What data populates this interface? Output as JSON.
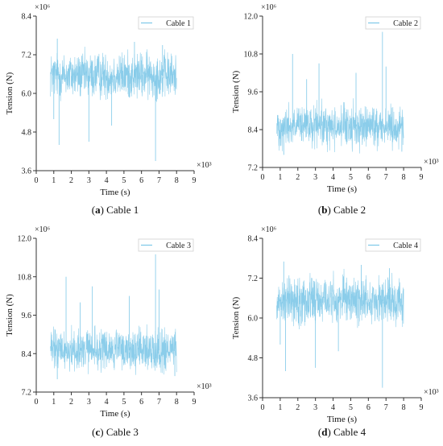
{
  "colors": {
    "signal": "#7ec8e8",
    "axis": "#333333",
    "legend_border": "#cfcfcf"
  },
  "chart_data": [
    {
      "type": "line",
      "caption_letter": "a",
      "caption_text": "Cable 1",
      "legend": "Cable 1",
      "xlabel": "Time (s)",
      "ylabel": "Tension (N)",
      "x_multiplier": "×10³",
      "y_multiplier": "×10⁶",
      "xlim": [
        0,
        9
      ],
      "ylim": [
        3.6,
        8.4
      ],
      "xticks": [
        0,
        1,
        2,
        3,
        4,
        5,
        6,
        7,
        8,
        9
      ],
      "yticks": [
        3.6,
        4.8,
        6.0,
        7.2,
        8.4
      ],
      "yticklabels": [
        "3.6",
        "4.8",
        "6.0",
        "7.2",
        "8.4"
      ],
      "x_range": [
        0.8,
        8.0
      ],
      "mean": 6.55,
      "spread": 0.35,
      "spikes": [
        [
          1.3,
          4.4
        ],
        [
          3.0,
          4.5
        ],
        [
          6.8,
          3.9
        ],
        [
          1.0,
          5.2
        ],
        [
          4.3,
          5.0
        ],
        [
          1.2,
          7.7
        ],
        [
          5.6,
          7.6
        ],
        [
          7.2,
          7.5
        ]
      ]
    },
    {
      "type": "line",
      "caption_letter": "b",
      "caption_text": "Cable 2",
      "legend": "Cable 2",
      "xlabel": "Time (s)",
      "ylabel": "Tension (N)",
      "x_multiplier": "×10³",
      "y_multiplier": "×10⁶",
      "xlim": [
        0,
        9
      ],
      "ylim": [
        7.2,
        12.0
      ],
      "xticks": [
        0,
        1,
        2,
        3,
        4,
        5,
        6,
        7,
        8,
        9
      ],
      "yticks": [
        7.2,
        8.4,
        9.6,
        10.8,
        12.0
      ],
      "yticklabels": [
        "7.2",
        "8.4",
        "9.6",
        "10.8",
        "12.0"
      ],
      "x_range": [
        0.8,
        8.0
      ],
      "mean": 8.5,
      "spread": 0.32,
      "spikes": [
        [
          6.8,
          11.5
        ],
        [
          1.7,
          10.8
        ],
        [
          3.2,
          10.5
        ],
        [
          7.0,
          10.4
        ],
        [
          5.3,
          10.2
        ],
        [
          2.5,
          10.0
        ],
        [
          1.2,
          7.6
        ],
        [
          7.9,
          7.7
        ]
      ]
    },
    {
      "type": "line",
      "caption_letter": "c",
      "caption_text": "Cable 3",
      "legend": "Cable 3",
      "xlabel": "Time (s)",
      "ylabel": "Tension (N)",
      "x_multiplier": "×10³",
      "y_multiplier": "×10⁶",
      "xlim": [
        0,
        9
      ],
      "ylim": [
        7.2,
        12.0
      ],
      "xticks": [
        0,
        1,
        2,
        3,
        4,
        5,
        6,
        7,
        8,
        9
      ],
      "yticks": [
        7.2,
        8.4,
        9.6,
        10.8,
        12.0
      ],
      "yticklabels": [
        "7.2",
        "8.4",
        "9.6",
        "10.8",
        "12.0"
      ],
      "x_range": [
        0.8,
        8.0
      ],
      "mean": 8.5,
      "spread": 0.32,
      "spikes": [
        [
          6.8,
          11.5
        ],
        [
          1.7,
          10.8
        ],
        [
          3.2,
          10.5
        ],
        [
          7.0,
          10.4
        ],
        [
          5.3,
          10.2
        ],
        [
          2.5,
          10.0
        ],
        [
          1.2,
          7.6
        ],
        [
          7.9,
          7.7
        ]
      ]
    },
    {
      "type": "line",
      "caption_letter": "d",
      "caption_text": "Cable 4",
      "legend": "Cable 4",
      "xlabel": "Time (s)",
      "ylabel": "Tension (N)",
      "x_multiplier": "×10³",
      "y_multiplier": "×10⁶",
      "xlim": [
        0,
        9
      ],
      "ylim": [
        3.6,
        8.4
      ],
      "xticks": [
        0,
        1,
        2,
        3,
        4,
        5,
        6,
        7,
        8,
        9
      ],
      "yticks": [
        3.6,
        4.8,
        6.0,
        7.2,
        8.4
      ],
      "yticklabels": [
        "3.6",
        "4.8",
        "6.0",
        "7.2",
        "8.4"
      ],
      "x_range": [
        0.8,
        8.0
      ],
      "mean": 6.55,
      "spread": 0.35,
      "spikes": [
        [
          1.3,
          4.4
        ],
        [
          3.0,
          4.5
        ],
        [
          6.8,
          3.9
        ],
        [
          1.0,
          5.2
        ],
        [
          4.3,
          5.0
        ],
        [
          1.2,
          7.7
        ],
        [
          5.6,
          7.6
        ],
        [
          7.2,
          7.5
        ]
      ]
    }
  ]
}
